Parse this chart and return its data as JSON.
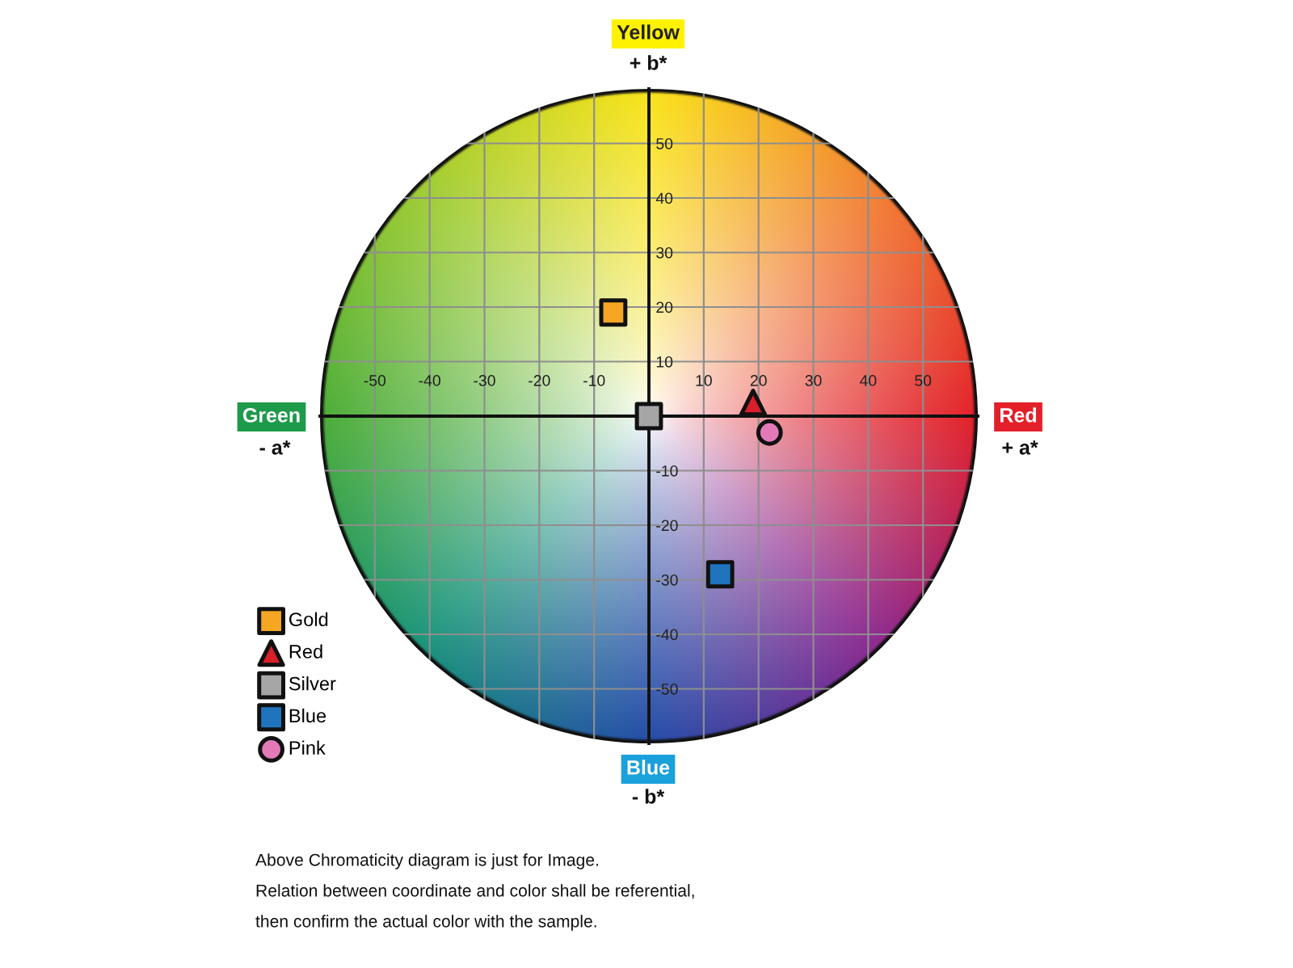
{
  "chart_data": {
    "type": "scatter",
    "xlim": [
      -60,
      60
    ],
    "ylim": [
      -60,
      60
    ],
    "xticks": [
      -50,
      -40,
      -30,
      -20,
      -10,
      10,
      20,
      30,
      40,
      50
    ],
    "yticks": [
      -50,
      -40,
      -30,
      -20,
      -10,
      10,
      20,
      30,
      40,
      50
    ],
    "grid": true,
    "legend": "bottom left",
    "series": [
      {
        "name": "Gold",
        "color": "#f5a623",
        "marker": "square",
        "x": [
          -6.5
        ],
        "values": [
          19
        ]
      },
      {
        "name": "Red",
        "color": "#d7202a",
        "marker": "triangle",
        "x": [
          19
        ],
        "values": [
          2.5
        ]
      },
      {
        "name": "Silver",
        "color": "#a6a6a6",
        "marker": "square",
        "x": [
          0
        ],
        "values": [
          0
        ]
      },
      {
        "name": "Blue",
        "color": "#1f74bd",
        "marker": "square",
        "x": [
          13
        ],
        "values": [
          -29
        ]
      },
      {
        "name": "Pink",
        "color": "#e27ab8",
        "marker": "circle",
        "x": [
          22
        ],
        "values": [
          -3
        ]
      }
    ],
    "annotations": [
      "Yellow",
      "+ b*",
      "Green",
      "- a*",
      "Red",
      "+ a*",
      "Blue",
      "- b*",
      "Above Chromaticity diagram is just for Image.",
      "Relation between coordinate and color shall be referential,",
      "then confirm the actual color with the sample."
    ]
  }
}
